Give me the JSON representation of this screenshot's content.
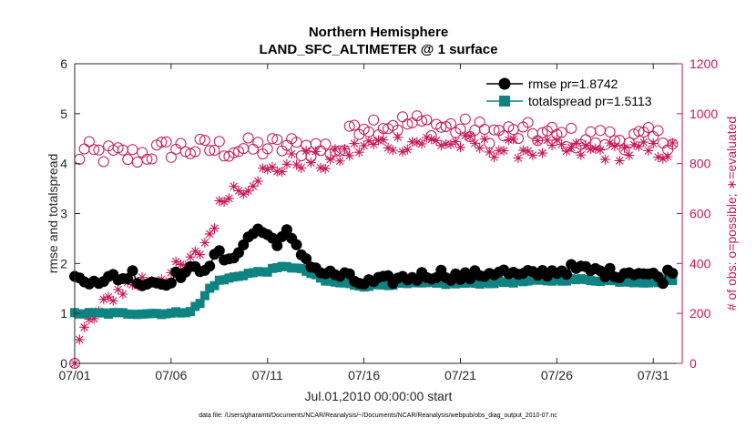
{
  "chart_data": {
    "type": "line",
    "title": [
      "Northern Hemisphere",
      "LAND_SFC_ALTIMETER @ 1 surface"
    ],
    "xlabel": "Jul.01,2010 00:00:00 start",
    "ylabel_left": "rmse and totalspread",
    "ylabel_right": "# of obs: o=possible; ∗=evaluated",
    "footnote": "data file: /Users/gharamti/Documents/NCAR/Reanalysis/~/Documents/NCAR/Reanalysis/webpub/obs_diag_output_2010-07.nc",
    "xlim": [
      0,
      31.5
    ],
    "x_tick_values": [
      0,
      5,
      10,
      15,
      20,
      25,
      30
    ],
    "x_tick_labels": [
      "07/01",
      "07/06",
      "07/11",
      "07/16",
      "07/21",
      "07/26",
      "07/31"
    ],
    "ylim_left": [
      0,
      6
    ],
    "y_ticks_left": [
      "0",
      "1",
      "2",
      "3",
      "4",
      "5",
      "6"
    ],
    "ylim_right": [
      0,
      1200
    ],
    "y_ticks_right": [
      "0",
      "200",
      "400",
      "600",
      "800",
      "1000",
      "1200"
    ],
    "colors": {
      "rmse": "#000000",
      "spread": "#0e8381",
      "obs": "#c5195a"
    },
    "series": [
      {
        "name": "rmse pr=1.8742",
        "axis": "left",
        "marker": "circle",
        "anchors": [
          [
            0,
            1.7
          ],
          [
            0.5,
            1.65
          ],
          [
            1,
            1.72
          ],
          [
            1.5,
            1.6
          ],
          [
            2,
            1.75
          ],
          [
            2.5,
            1.7
          ],
          [
            3,
            1.8
          ],
          [
            3.5,
            1.6
          ],
          [
            4,
            1.65
          ],
          [
            4.5,
            1.6
          ],
          [
            5,
            1.7
          ],
          [
            5.5,
            1.8
          ],
          [
            6,
            1.85
          ],
          [
            6.5,
            1.9
          ],
          [
            7,
            2.0
          ],
          [
            7.5,
            2.2
          ],
          [
            8,
            2.0
          ],
          [
            8.5,
            2.3
          ],
          [
            9,
            2.5
          ],
          [
            9.5,
            2.7
          ],
          [
            10,
            2.55
          ],
          [
            10.5,
            2.45
          ],
          [
            11,
            2.6
          ],
          [
            11.5,
            2.3
          ],
          [
            12,
            2.1
          ],
          [
            12.5,
            1.9
          ],
          [
            13,
            1.8
          ],
          [
            14,
            1.75
          ],
          [
            14.5,
            1.65
          ],
          [
            15,
            1.6
          ],
          [
            16,
            1.65
          ],
          [
            17,
            1.7
          ],
          [
            18,
            1.75
          ],
          [
            19,
            1.8
          ],
          [
            20,
            1.72
          ],
          [
            21,
            1.78
          ],
          [
            22,
            1.85
          ],
          [
            23,
            1.75
          ],
          [
            24,
            1.8
          ],
          [
            25,
            1.85
          ],
          [
            26,
            1.9
          ],
          [
            27,
            1.85
          ],
          [
            28,
            1.8
          ],
          [
            29,
            1.85
          ],
          [
            30,
            1.75
          ],
          [
            30.5,
            1.7
          ],
          [
            31,
            1.9
          ],
          [
            31.3,
            2.25
          ]
        ],
        "noise": 0.1
      },
      {
        "name": "totalspread pr=1.5113",
        "axis": "left",
        "marker": "square",
        "anchors": [
          [
            0,
            1.0
          ],
          [
            5,
            1.0
          ],
          [
            6,
            1.05
          ],
          [
            6.5,
            1.2
          ],
          [
            7,
            1.5
          ],
          [
            7.5,
            1.65
          ],
          [
            8,
            1.7
          ],
          [
            8.5,
            1.75
          ],
          [
            9,
            1.8
          ],
          [
            10,
            1.85
          ],
          [
            11,
            1.95
          ],
          [
            12,
            1.85
          ],
          [
            13,
            1.65
          ],
          [
            14,
            1.6
          ],
          [
            15,
            1.55
          ],
          [
            16,
            1.58
          ],
          [
            18,
            1.6
          ],
          [
            20,
            1.6
          ],
          [
            22,
            1.62
          ],
          [
            24,
            1.65
          ],
          [
            26,
            1.68
          ],
          [
            28,
            1.65
          ],
          [
            30,
            1.62
          ],
          [
            31.3,
            1.7
          ]
        ],
        "noise": 0.025
      },
      {
        "name": "possible",
        "axis": "right",
        "marker": "open-circle",
        "anchors": [
          [
            0,
            760
          ],
          [
            0.3,
            850
          ],
          [
            1,
            840
          ],
          [
            3,
            830
          ],
          [
            5,
            860
          ],
          [
            7,
            860
          ],
          [
            9,
            860
          ],
          [
            11,
            870
          ],
          [
            13,
            860
          ],
          [
            14,
            860
          ],
          [
            14.5,
            960
          ],
          [
            16,
            960
          ],
          [
            18,
            960
          ],
          [
            20,
            940
          ],
          [
            22,
            920
          ],
          [
            24,
            920
          ],
          [
            26,
            900
          ],
          [
            28,
            900
          ],
          [
            30,
            900
          ],
          [
            31.3,
            900
          ]
        ],
        "noise": 45
      },
      {
        "name": "evaluated",
        "axis": "right",
        "marker": "asterisk",
        "anchors": [
          [
            0,
            0
          ],
          [
            0.3,
            100
          ],
          [
            0.7,
            160
          ],
          [
            1.3,
            200
          ],
          [
            2,
            280
          ],
          [
            3,
            320
          ],
          [
            4,
            340
          ],
          [
            5,
            360
          ],
          [
            6,
            400
          ],
          [
            6.5,
            450
          ],
          [
            7,
            520
          ],
          [
            7.5,
            620
          ],
          [
            8,
            700
          ],
          [
            8.5,
            700
          ],
          [
            9,
            720
          ],
          [
            9.5,
            760
          ],
          [
            10,
            760
          ],
          [
            11,
            800
          ],
          [
            12,
            820
          ],
          [
            13,
            800
          ],
          [
            14,
            840
          ],
          [
            15,
            870
          ],
          [
            16,
            880
          ],
          [
            18,
            890
          ],
          [
            20,
            880
          ],
          [
            22,
            860
          ],
          [
            24,
            860
          ],
          [
            26,
            850
          ],
          [
            28,
            850
          ],
          [
            30,
            850
          ],
          [
            31.3,
            850
          ]
        ],
        "noise": 40
      }
    ]
  }
}
